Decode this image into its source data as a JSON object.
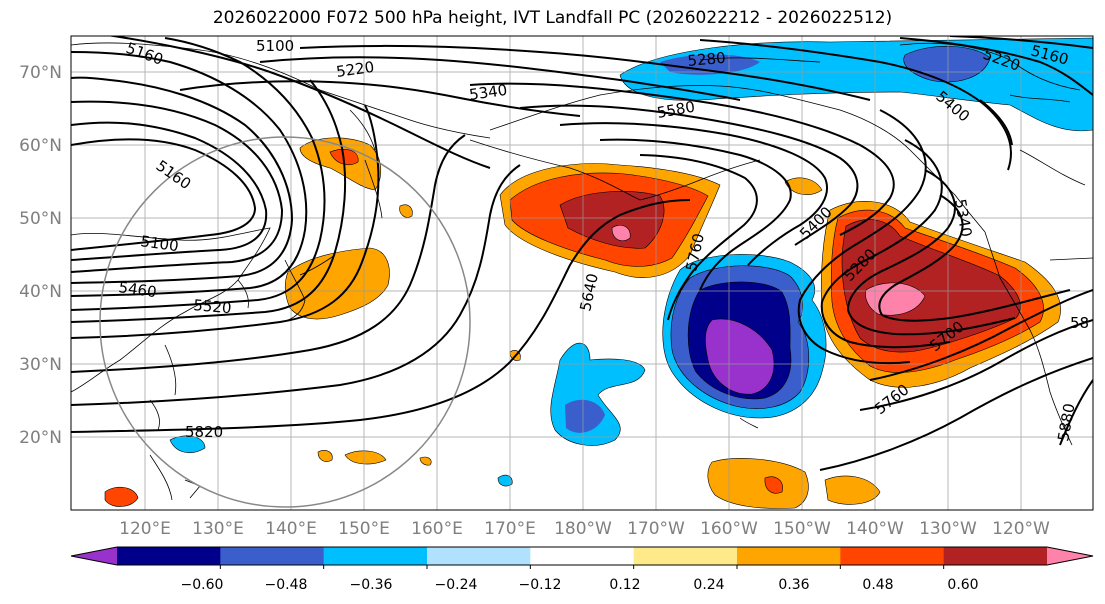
{
  "title": "2026022000 F072 500 hPa height, IVT Landfall PC (2026022212 - 2026022512)",
  "lat_labels": [
    "70°N",
    "60°N",
    "50°N",
    "40°N",
    "30°N",
    "20°N"
  ],
  "lon_labels": [
    "120°E",
    "130°E",
    "140°E",
    "150°E",
    "160°E",
    "170°E",
    "180°W",
    "170°W",
    "160°W",
    "150°W",
    "140°W",
    "130°W",
    "120°W"
  ],
  "contour_labels": [
    "5100",
    "5160",
    "5220",
    "5340",
    "5280",
    "5580",
    "5160",
    "5100",
    "5460",
    "5520",
    "5640",
    "5760",
    "5400",
    "5280",
    "5340",
    "5700",
    "5760",
    "5820",
    "5880",
    "5220",
    "5160",
    "5400",
    "58"
  ],
  "colorbar": {
    "tick_labels": [
      "−0.60",
      "−0.48",
      "−0.36",
      "−0.24",
      "−0.12",
      "0.12",
      "0.24",
      "0.36",
      "0.48",
      "0.60"
    ],
    "colors": [
      "#9932cc",
      "#00008b",
      "#3a5fcd",
      "#00bfff",
      "#b0e2ff",
      "#ffffff",
      "#ffea8a",
      "#ffa500",
      "#ff4500",
      "#b22222",
      "#ff82ab"
    ]
  }
}
